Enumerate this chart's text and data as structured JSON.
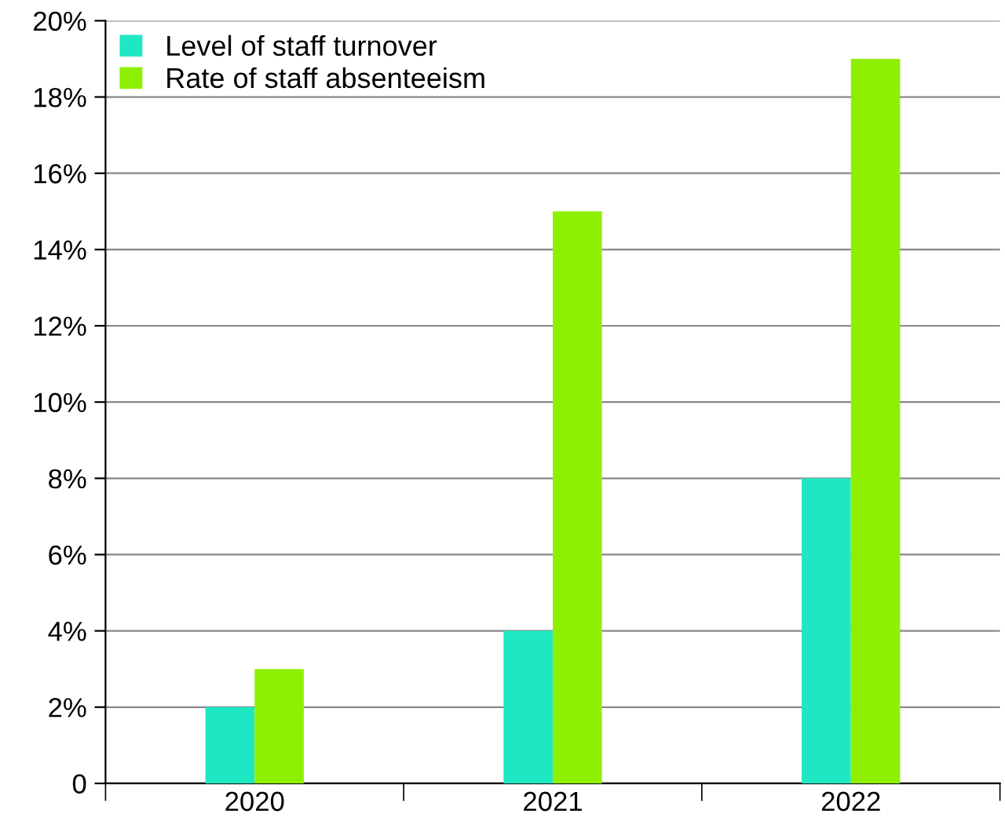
{
  "chart_data": {
    "type": "bar",
    "categories": [
      "2020",
      "2021",
      "2022"
    ],
    "series": [
      {
        "name": "Level of staff turnover",
        "color": "#1ee8c4",
        "values": [
          2,
          4,
          8
        ]
      },
      {
        "name": "Rate of staff absenteeism",
        "color": "#8ef000",
        "values": [
          3,
          15,
          19
        ]
      }
    ],
    "ylim": [
      0,
      20
    ],
    "yticks": [
      0,
      {
        "value": 2,
        "label": "2%"
      },
      {
        "value": 4,
        "label": "4%"
      },
      {
        "value": 6,
        "label": "6%"
      },
      {
        "value": 8,
        "label": "8%"
      },
      {
        "value": 10,
        "label": "10%"
      },
      {
        "value": 12,
        "label": "12%"
      },
      {
        "value": 14,
        "label": "14%"
      },
      {
        "value": 16,
        "label": "16%"
      },
      {
        "value": 18,
        "label": "18%"
      },
      {
        "value": 20,
        "label": "20%"
      }
    ],
    "grid": "y",
    "legend": "top left"
  }
}
